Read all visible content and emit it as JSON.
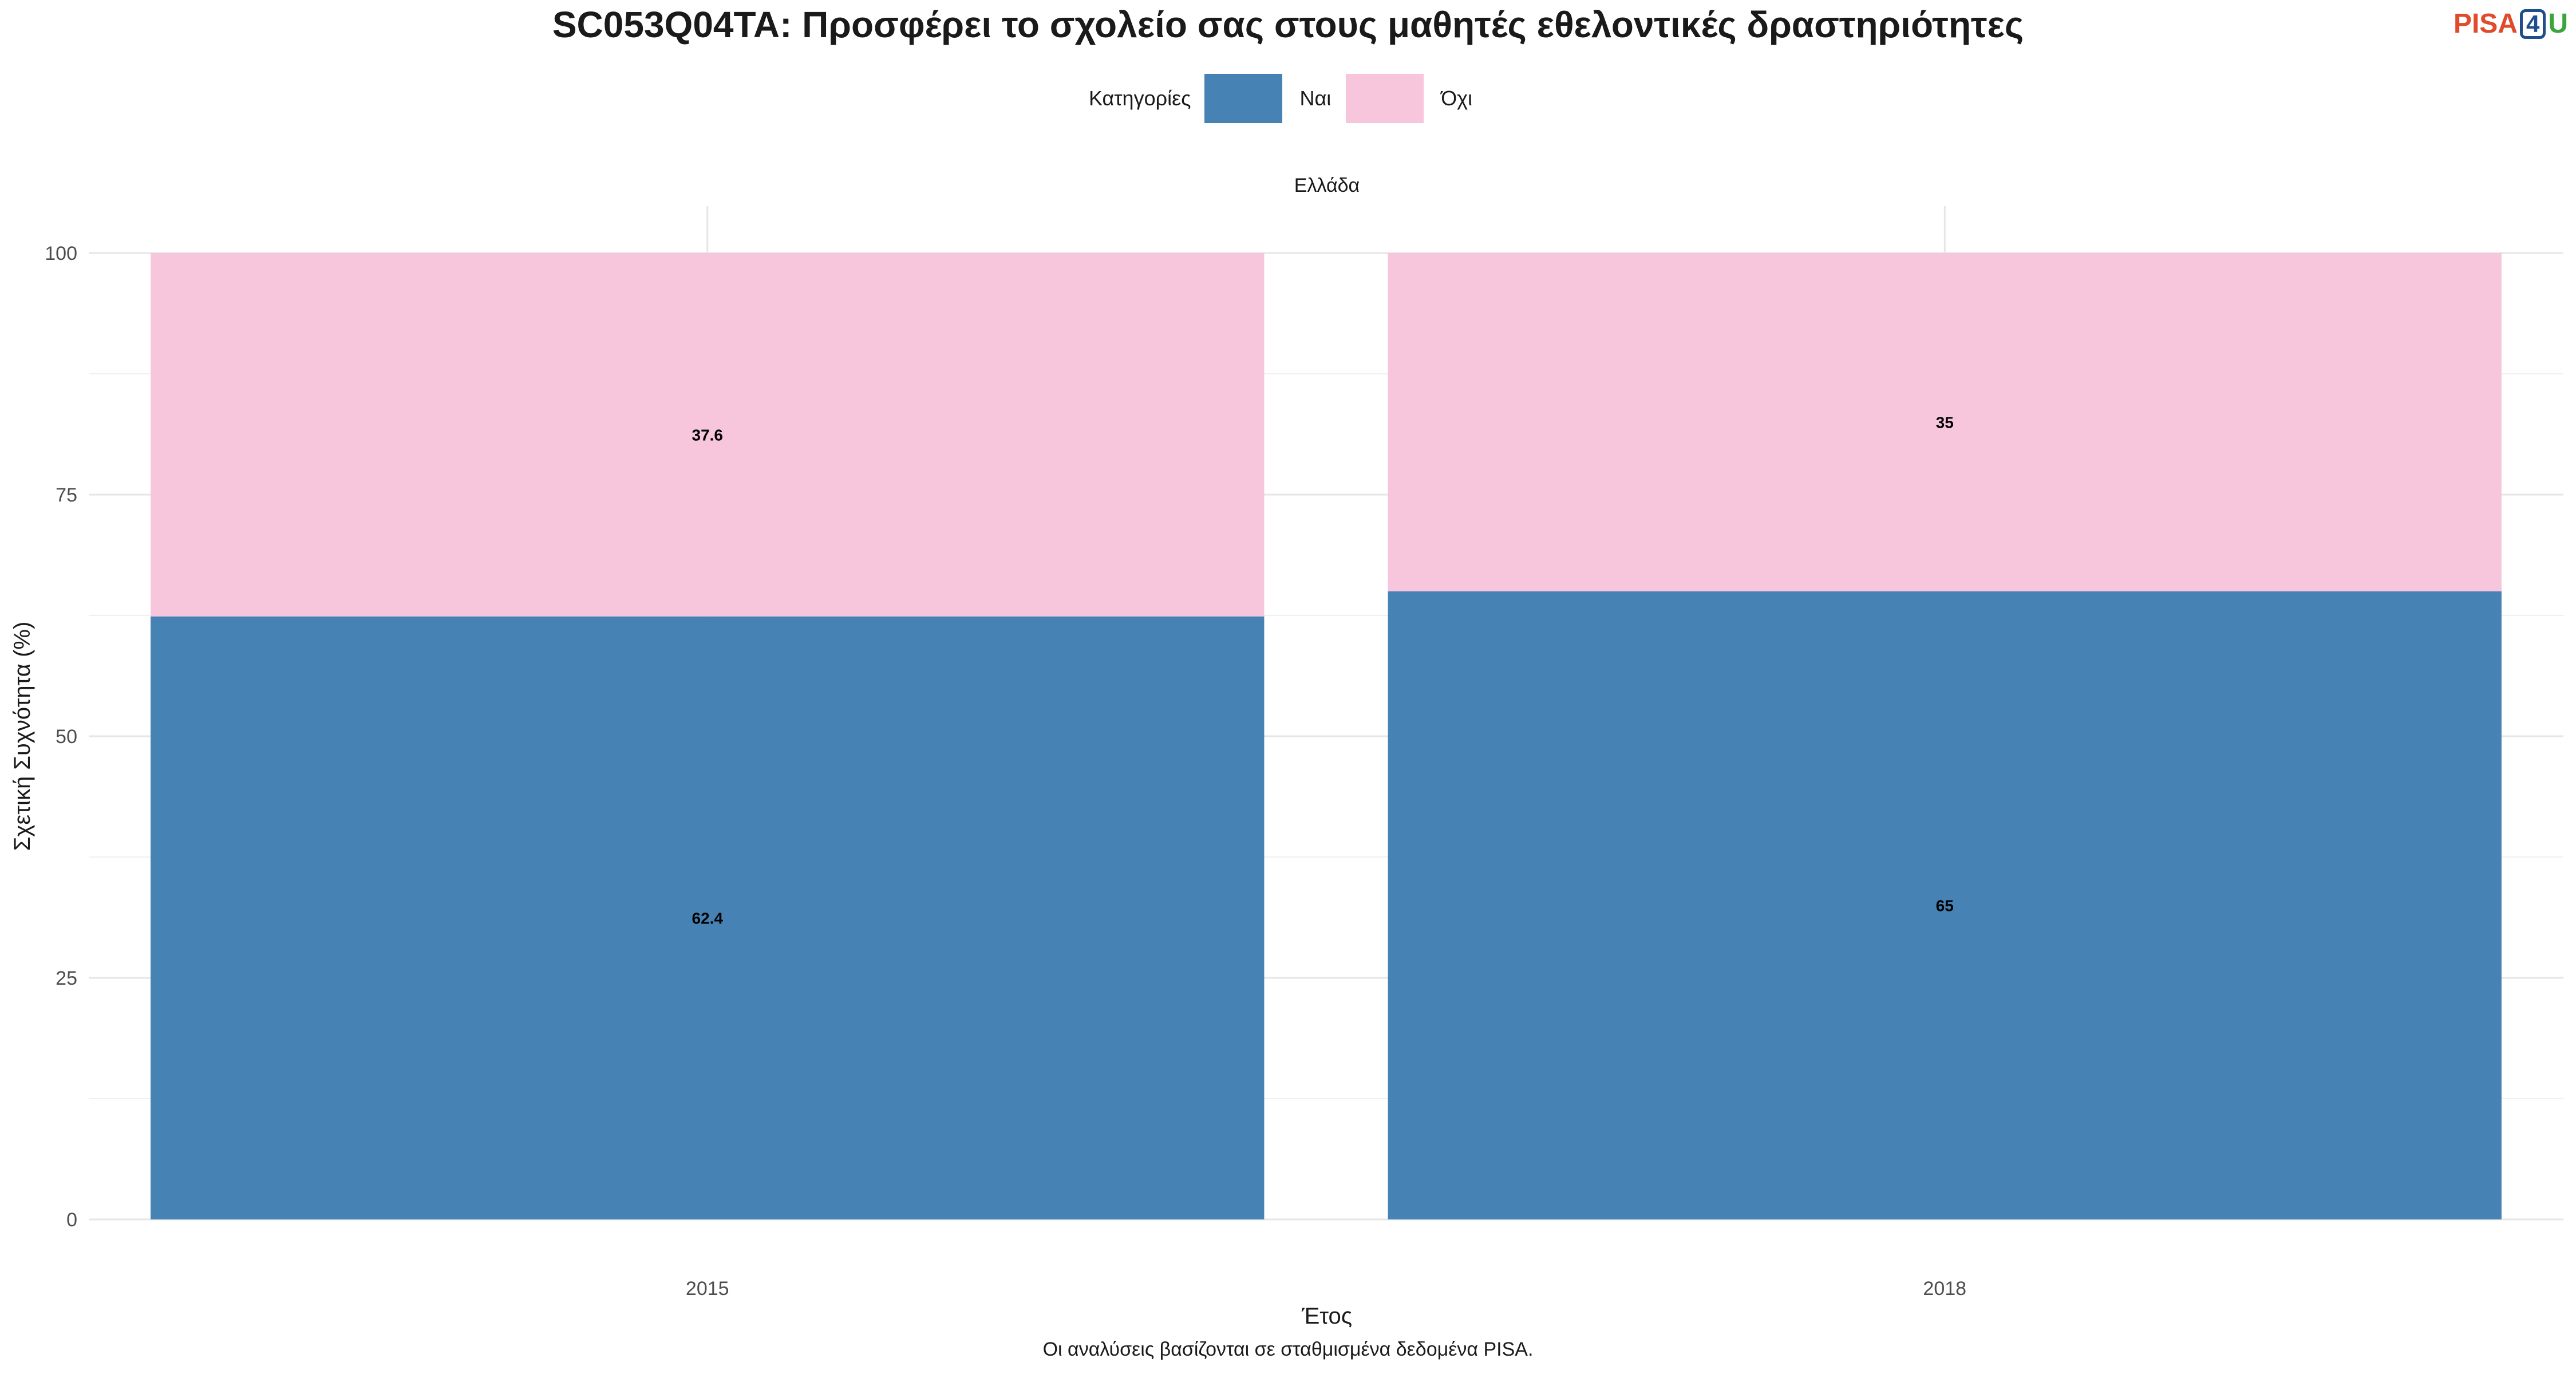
{
  "title": "SC053Q04TA: Προσφέρει το σχολείο σας στους μαθητές εθελοντικές δραστηριότητες",
  "logo": {
    "part1": "PISA",
    "part2": "4",
    "part3": "U"
  },
  "caption": "Οι αναλύσεις βασίζονται σε σταθμισμένα δεδομένα PISA.",
  "legend": {
    "title": "Κατηγορίες",
    "items": [
      {
        "label": "Ναι",
        "color": "#4682b4"
      },
      {
        "label": "Όχι",
        "color": "#f7c6dc"
      }
    ]
  },
  "chart_data": {
    "type": "bar",
    "stacked": true,
    "facet": "Ελλάδα",
    "categories": [
      "2015",
      "2018"
    ],
    "series": [
      {
        "name": "Ναι",
        "values": [
          62.4,
          65
        ],
        "labels": [
          "62.4",
          "65"
        ],
        "color": "#4682b4"
      },
      {
        "name": "Όχι",
        "values": [
          37.6,
          35
        ],
        "labels": [
          "37.6",
          "35"
        ],
        "color": "#f7c6dc"
      }
    ],
    "xlabel": "Έτος",
    "ylabel": "Σχετική Συχνότητα (%)",
    "ylim": [
      0,
      100
    ],
    "yticks": [
      0,
      25,
      50,
      75,
      100
    ],
    "grid": true,
    "legend_position": "top"
  }
}
